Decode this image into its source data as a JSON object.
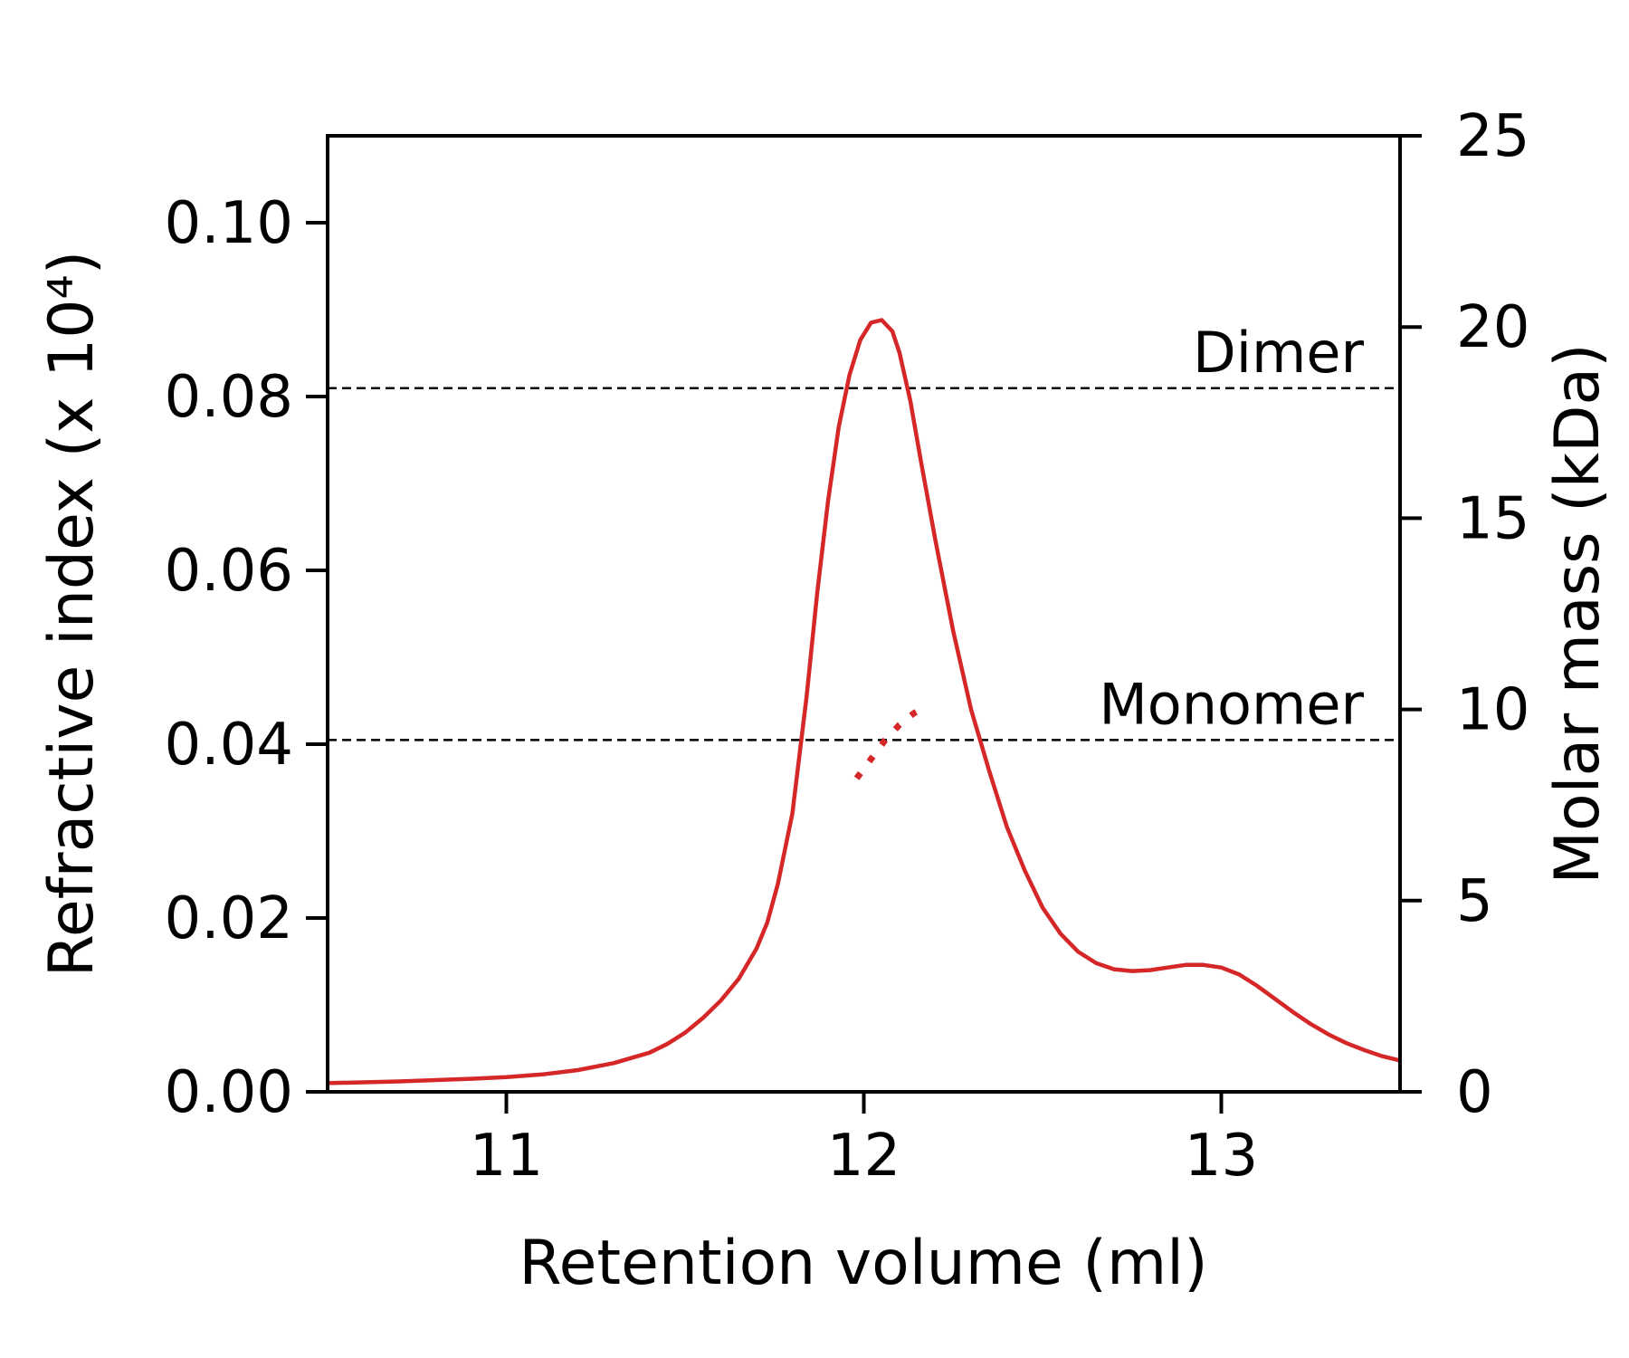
{
  "chart_data": {
    "type": "line",
    "title": "",
    "xlabel": "Retention volume (ml)",
    "ylabel": "Refractive index (x 10⁴)",
    "y2label": "Molar mass (kDa)",
    "xlim": [
      10.5,
      13.5
    ],
    "ylim": [
      0,
      0.11
    ],
    "y2lim": [
      0,
      25
    ],
    "x_ticks": [
      11,
      12,
      13
    ],
    "x_tick_labels": [
      "11",
      "12",
      "13"
    ],
    "y_ticks": [
      0.0,
      0.02,
      0.04,
      0.06,
      0.08,
      0.1
    ],
    "y_tick_labels": [
      "0.00",
      "0.02",
      "0.04",
      "0.06",
      "0.08",
      "0.10"
    ],
    "y2_ticks": [
      0,
      5,
      10,
      15,
      20,
      25
    ],
    "y2_tick_labels": [
      "0",
      "5",
      "10",
      "15",
      "20",
      "25"
    ],
    "grid": false,
    "legend": "none",
    "color": "#d62728",
    "series": [
      {
        "axis": "left",
        "style": "solid",
        "x": [
          10.5,
          10.7,
          10.9,
          11.0,
          11.1,
          11.2,
          11.3,
          11.4,
          11.45,
          11.5,
          11.55,
          11.6,
          11.65,
          11.7,
          11.73,
          11.76,
          11.8,
          11.84,
          11.87,
          11.9,
          11.93,
          11.96,
          11.99,
          12.02,
          12.05,
          12.08,
          12.1,
          12.13,
          12.16,
          12.2,
          12.25,
          12.3,
          12.35,
          12.4,
          12.45,
          12.5,
          12.55,
          12.6,
          12.65,
          12.7,
          12.75,
          12.8,
          12.85,
          12.9,
          12.95,
          13.0,
          13.05,
          13.1,
          13.15,
          13.2,
          13.25,
          13.3,
          13.35,
          13.4,
          13.45,
          13.5
        ],
        "y": [
          0.001,
          0.0012,
          0.0015,
          0.0017,
          0.002,
          0.0025,
          0.0033,
          0.0045,
          0.0055,
          0.0068,
          0.0085,
          0.0105,
          0.013,
          0.0165,
          0.0195,
          0.024,
          0.032,
          0.0455,
          0.0575,
          0.068,
          0.0765,
          0.0825,
          0.0865,
          0.0885,
          0.0888,
          0.0875,
          0.085,
          0.0795,
          0.0725,
          0.0635,
          0.053,
          0.044,
          0.037,
          0.0305,
          0.0255,
          0.0212,
          0.0182,
          0.0161,
          0.0148,
          0.0141,
          0.0139,
          0.014,
          0.0143,
          0.0146,
          0.0146,
          0.0143,
          0.0135,
          0.0122,
          0.0107,
          0.0092,
          0.0078,
          0.0066,
          0.0056,
          0.0048,
          0.0041,
          0.0036
        ]
      },
      {
        "axis": "right",
        "style": "dotted",
        "x": [
          11.98,
          12.02,
          12.06,
          12.1,
          12.14,
          12.18
        ],
        "y": [
          8.2,
          8.7,
          9.2,
          9.6,
          9.9,
          10.1
        ]
      }
    ],
    "reference_lines": [
      {
        "label": "Dimer",
        "y2": 18.4
      },
      {
        "label": "Monomer",
        "y2": 9.2
      }
    ]
  }
}
